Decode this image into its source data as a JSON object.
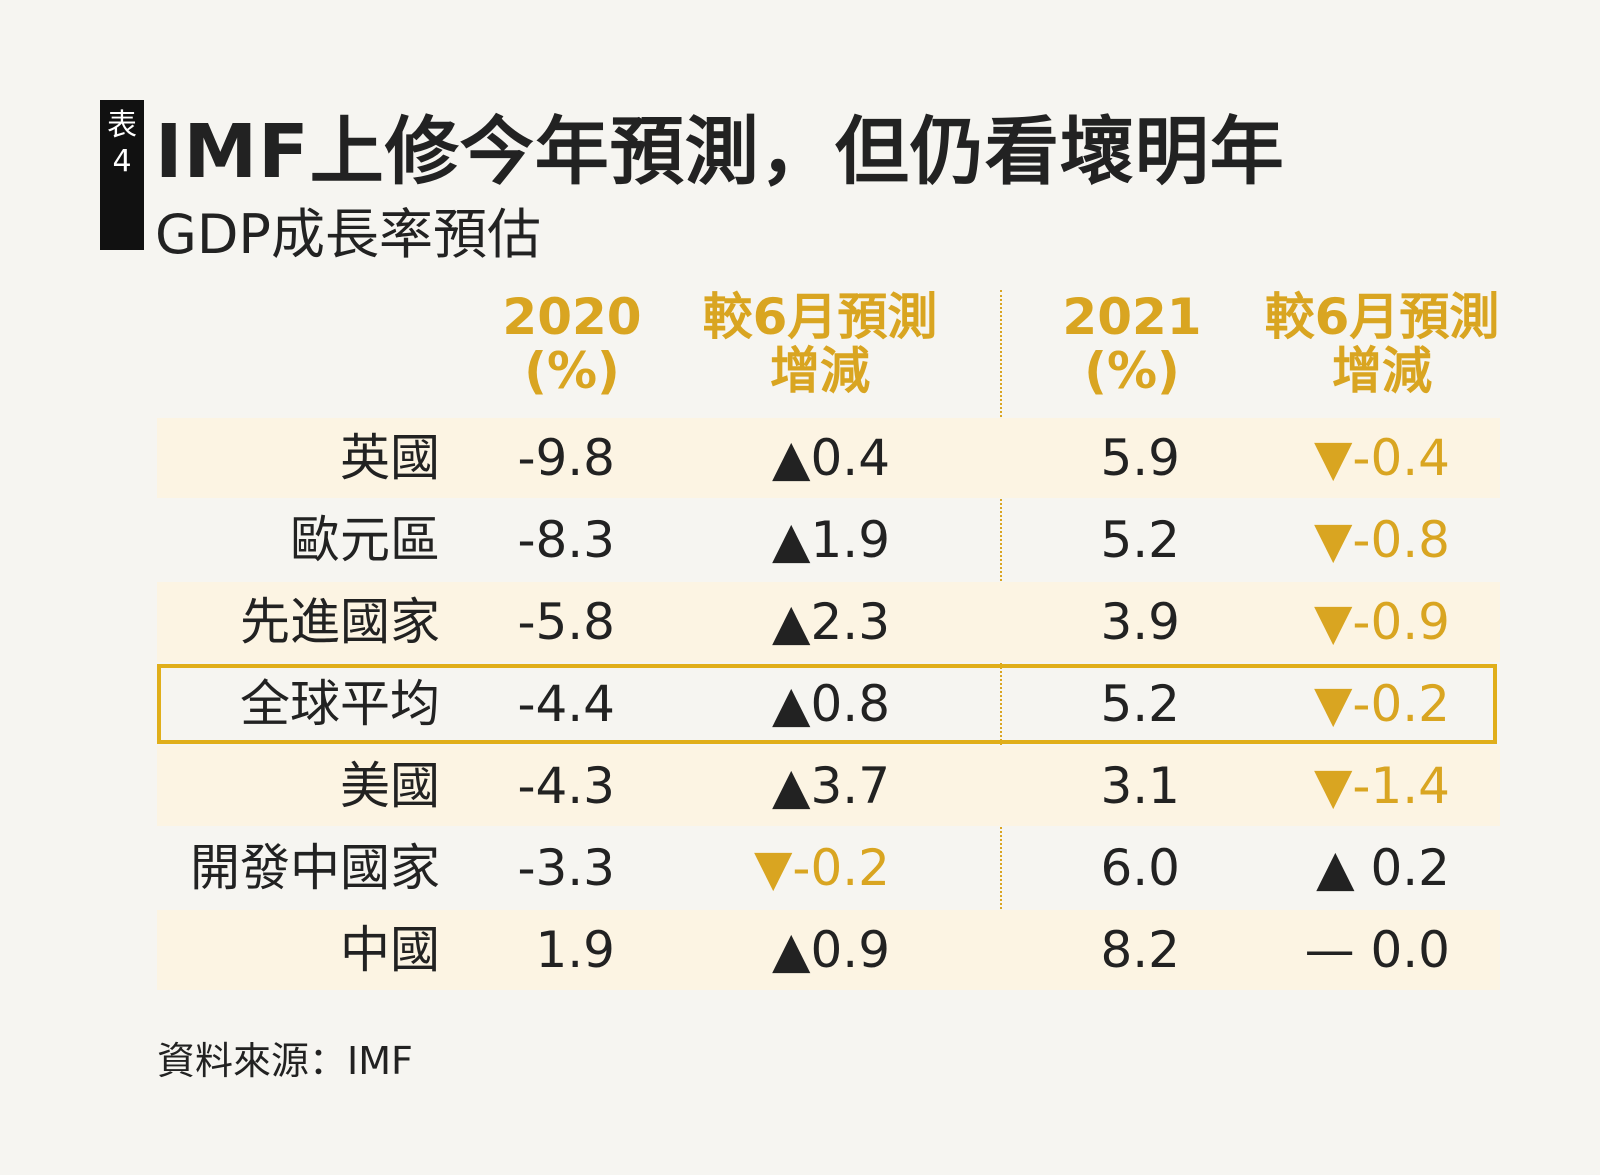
{
  "badge": {
    "top": "表",
    "bottom": "4"
  },
  "title": "IMF上修今年預測，但仍看壞明年",
  "subtitle": "GDP成長率預估",
  "table": {
    "headers": [
      [
        "2020",
        "(%)"
      ],
      [
        "較6月預測",
        "增減"
      ],
      [
        "2021",
        "(%)"
      ],
      [
        "較6月預測",
        "增減"
      ]
    ],
    "rows": [
      [
        "英國",
        "-9.8",
        "▲0.4",
        "5.9",
        "▼-0.4"
      ],
      [
        "歐元區",
        "-8.3",
        "▲1.9",
        "5.2",
        "▼-0.8"
      ],
      [
        "先進國家",
        "-5.8",
        "▲2.3",
        "3.9",
        "▼-0.9"
      ],
      [
        "全球平均",
        "-4.4",
        "▲0.8",
        "5.2",
        "▼-0.2"
      ],
      [
        "美國",
        "-4.3",
        "▲3.7",
        "3.1",
        "▼-1.4"
      ],
      [
        "開發中國家",
        "-3.3",
        "▼-0.2",
        "6.0",
        "▲ 0.2"
      ],
      [
        "中國",
        "1.9",
        "▲0.9",
        "8.2",
        "— 0.0"
      ]
    ],
    "highlight_row": 3
  },
  "source": "資料來源：IMF"
}
